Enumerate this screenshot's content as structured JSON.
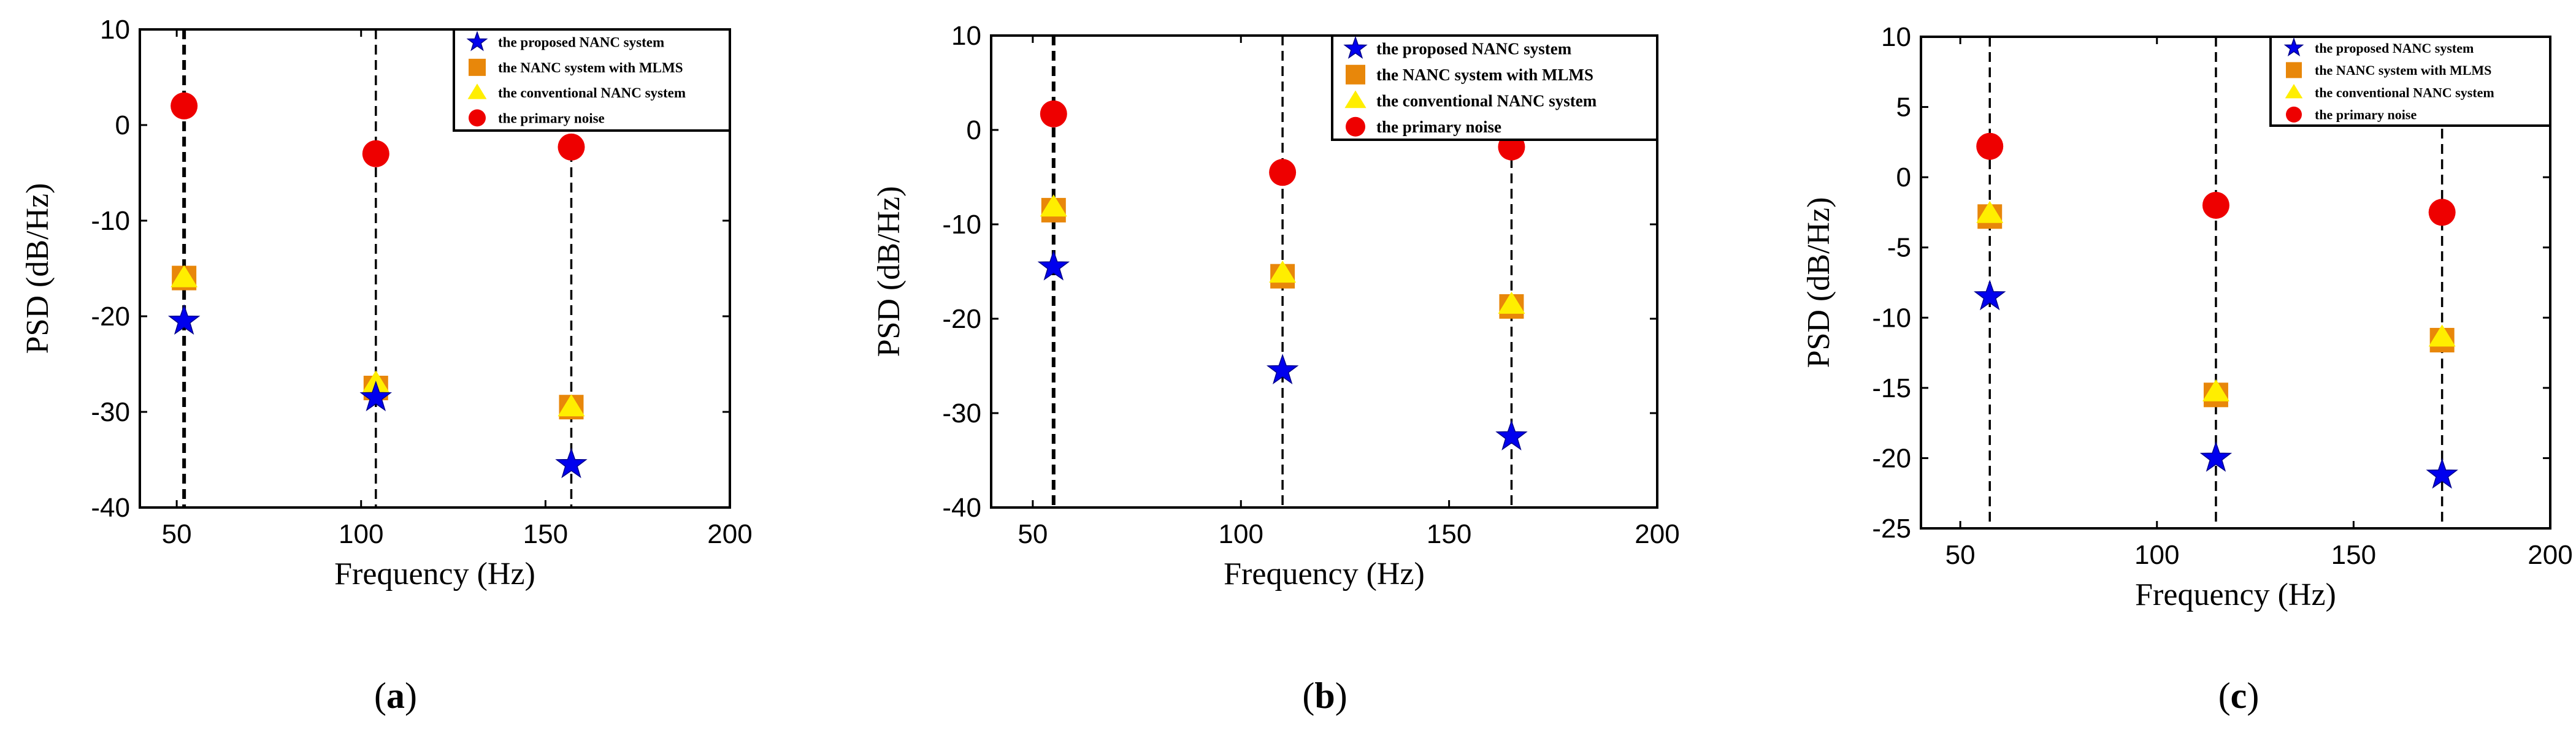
{
  "colors": {
    "proposed": "#0000ee",
    "mlms": "#e8870a",
    "conventional": "#ffee00",
    "primary": "#ee0000",
    "axis": "#000000"
  },
  "chart_data": [
    {
      "type": "scatter",
      "panel_label": "(a)",
      "panel_letter": "a",
      "xlabel": "Frequency (Hz)",
      "ylabel": "PSD (dB/Hz)",
      "xlim": [
        40,
        200
      ],
      "ylim": [
        -40,
        10
      ],
      "xticks": [
        50,
        100,
        150,
        200
      ],
      "yticks": [
        10,
        0,
        -10,
        -20,
        -30,
        -40
      ],
      "vlines": [
        52,
        104,
        157
      ],
      "legend_position": "top-right",
      "series": [
        {
          "name": "the proposed NANC system",
          "marker": "star",
          "color_key": "proposed",
          "x": [
            52,
            104,
            157
          ],
          "y": [
            -20.5,
            -28.5,
            -35.5
          ]
        },
        {
          "name": "the NANC system with MLMS",
          "marker": "square",
          "color_key": "mlms",
          "x": [
            52,
            104,
            157
          ],
          "y": [
            -16,
            -27.5,
            -29.5
          ]
        },
        {
          "name": "the conventional NANC system",
          "marker": "triangle",
          "color_key": "conventional",
          "x": [
            52,
            104,
            157
          ],
          "y": [
            -16,
            -27,
            -29.5
          ]
        },
        {
          "name": "the primary noise",
          "marker": "circle",
          "color_key": "primary",
          "x": [
            52,
            104,
            157
          ],
          "y": [
            2,
            -3,
            -2.3
          ]
        }
      ]
    },
    {
      "type": "scatter",
      "panel_label": "(b)",
      "panel_letter": "b",
      "xlabel": "Frequency (Hz)",
      "ylabel": "PSD (dB/Hz)",
      "xlim": [
        40,
        200
      ],
      "ylim": [
        -40,
        10
      ],
      "xticks": [
        50,
        100,
        150,
        200
      ],
      "yticks": [
        10,
        0,
        -10,
        -20,
        -30,
        -40
      ],
      "vlines": [
        55,
        110,
        165
      ],
      "legend_position": "top-right",
      "series": [
        {
          "name": "the proposed NANC system",
          "marker": "star",
          "color_key": "proposed",
          "x": [
            55,
            110,
            165
          ],
          "y": [
            -14.5,
            -25.5,
            -32.5
          ]
        },
        {
          "name": "the NANC system with MLMS",
          "marker": "square",
          "color_key": "mlms",
          "x": [
            55,
            110,
            165
          ],
          "y": [
            -8.5,
            -15.5,
            -18.7
          ]
        },
        {
          "name": "the conventional NANC system",
          "marker": "triangle",
          "color_key": "conventional",
          "x": [
            55,
            110,
            165
          ],
          "y": [
            -8.2,
            -15.2,
            -18.5
          ]
        },
        {
          "name": "the primary noise",
          "marker": "circle",
          "color_key": "primary",
          "x": [
            55,
            110,
            165
          ],
          "y": [
            1.7,
            -4.5,
            -1.8
          ]
        }
      ]
    },
    {
      "type": "scatter",
      "panel_label": "(c)",
      "panel_letter": "c",
      "xlabel": "Frequency (Hz)",
      "ylabel": "PSD (dB/Hz)",
      "xlim": [
        40,
        200
      ],
      "ylim": [
        -25,
        10
      ],
      "xticks": [
        50,
        100,
        150,
        200
      ],
      "yticks": [
        10,
        5,
        0,
        -5,
        -10,
        -15,
        -20,
        -25
      ],
      "vlines": [
        57.5,
        115,
        172.5
      ],
      "legend_position": "top-right",
      "series": [
        {
          "name": "the proposed NANC system",
          "marker": "star",
          "color_key": "proposed",
          "x": [
            57.5,
            115,
            172.5
          ],
          "y": [
            -8.5,
            -20,
            -21.2
          ]
        },
        {
          "name": "the NANC system with MLMS",
          "marker": "square",
          "color_key": "mlms",
          "x": [
            57.5,
            115,
            172.5
          ],
          "y": [
            -2.8,
            -15.5,
            -11.6
          ]
        },
        {
          "name": "the conventional NANC system",
          "marker": "triangle",
          "color_key": "conventional",
          "x": [
            57.5,
            115,
            172.5
          ],
          "y": [
            -2.6,
            -15.3,
            -11.4
          ]
        },
        {
          "name": "the primary noise",
          "marker": "circle",
          "color_key": "primary",
          "x": [
            57.5,
            115,
            172.5
          ],
          "y": [
            2.2,
            -2,
            -2.5
          ]
        }
      ]
    }
  ]
}
